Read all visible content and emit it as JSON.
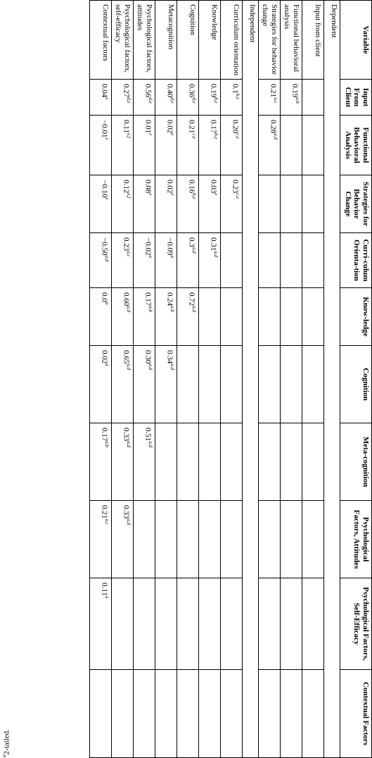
{
  "table": {
    "header": [
      "Variable",
      "Input From Client",
      "Functional Behavioral Analysis",
      "Strategies for Behavior Change",
      "Curri-culum Orienta-tion",
      "Know-ledge",
      "Cognition",
      "Meta-cognition",
      "Psychological Factors, Attitudes",
      "Psychological Factors, Self-Efficacy",
      "Contextual Factors"
    ],
    "rows": [
      {
        "section": "Dependent"
      },
      {
        "label": "Input from client",
        "cells": [
          null,
          null,
          null,
          null,
          null,
          null,
          null,
          null,
          null,
          null
        ]
      },
      {
        "label": "Functional behavioral analysis",
        "cells": [
          {
            "v": "0.19",
            "sup": "a,b"
          },
          null,
          null,
          null,
          null,
          null,
          null,
          null,
          null,
          null
        ]
      },
      {
        "label": "Strategies for behavior change",
        "cells": [
          {
            "v": "0.21",
            "sup": "a,c"
          },
          {
            "v": "0.28",
            "sup": "a,d"
          },
          null,
          null,
          null,
          null,
          null,
          null,
          null,
          null
        ]
      },
      {
        "section": "Independent"
      },
      {
        "label": "Curriculum orientation",
        "cells": [
          {
            "v": "0.1",
            "sup": "b,e"
          },
          {
            "v": "0.20",
            "sup": "c,e"
          },
          {
            "v": "0.23",
            "sup": "c,e"
          },
          null,
          null,
          null,
          null,
          null,
          null,
          null
        ]
      },
      {
        "label": "Knowledge",
        "cells": [
          {
            "v": "0.19",
            "sup": "b,e"
          },
          {
            "v": "0.17",
            "sup": "b,e"
          },
          {
            "v": "0.03",
            "sup": "e"
          },
          {
            "v": "0.31",
            "sup": "a,d"
          },
          null,
          null,
          null,
          null,
          null,
          null
        ]
      },
      {
        "label": "Cognition",
        "cells": [
          {
            "v": "0.36",
            "sup": "d,e"
          },
          {
            "v": "0.21",
            "sup": "c,e"
          },
          {
            "v": "0.16",
            "sup": "b,e"
          },
          {
            "v": "0.3",
            "sup": "a,d"
          },
          {
            "v": "0.72",
            "sup": "a,d"
          },
          null,
          null,
          null,
          null,
          null
        ]
      },
      {
        "label": "Metacognition",
        "cells": [
          {
            "v": "0.40",
            "sup": "d,e"
          },
          {
            "v": "0.02",
            "sup": "e"
          },
          {
            "v": "0.02",
            "sup": "e"
          },
          {
            "v": "−0.09",
            "sup": "a"
          },
          {
            "v": "0.24",
            "sup": "a,b"
          },
          {
            "v": "0.34",
            "sup": "a,d"
          },
          null,
          null,
          null,
          null
        ]
      },
      {
        "label": "Psychological factors, attitudes",
        "cells": [
          {
            "v": "0.56",
            "sup": "d,e"
          },
          {
            "v": "0.01",
            "sup": "e"
          },
          {
            "v": "0.08",
            "sup": "e"
          },
          {
            "v": "−0.02",
            "sup": "a"
          },
          {
            "v": "0.17",
            "sup": "a,b"
          },
          {
            "v": "0.30",
            "sup": "a,d"
          },
          {
            "v": "0.51",
            "sup": "a,d"
          },
          null,
          null,
          null
        ]
      },
      {
        "label": "Psychological factors, self-efficacy",
        "cells": [
          {
            "v": "0.27",
            "sup": "d,e"
          },
          {
            "v": "0.11",
            "sup": "e,f"
          },
          {
            "v": "0.12",
            "sup": "e,f"
          },
          {
            "v": "0.23",
            "sup": "a,c"
          },
          {
            "v": "0.60",
            "sup": "a,d"
          },
          {
            "v": "0.65",
            "sup": "a,d"
          },
          {
            "v": "0.33",
            "sup": "a,d"
          },
          {
            "v": "0.33",
            "sup": "a,d"
          },
          null,
          null
        ]
      },
      {
        "label": "Contextual factors",
        "cells": [
          {
            "v": "0.04",
            "sup": "e"
          },
          {
            "v": "−0.01",
            "sup": "e"
          },
          {
            "v": "−0.10",
            "sup": "e"
          },
          {
            "v": "−0.50",
            "sup": "a,d"
          },
          {
            "v": "0.0",
            "sup": "a"
          },
          {
            "v": "0.02",
            "sup": "a"
          },
          {
            "v": "0.17",
            "sup": "a,b"
          },
          {
            "v": "0.21",
            "sup": "a,c"
          },
          {
            "v": "0.11",
            "sup": "a"
          },
          null
        ]
      }
    ]
  },
  "footnote": {
    "mark": "a",
    "text": "2-tailed."
  }
}
